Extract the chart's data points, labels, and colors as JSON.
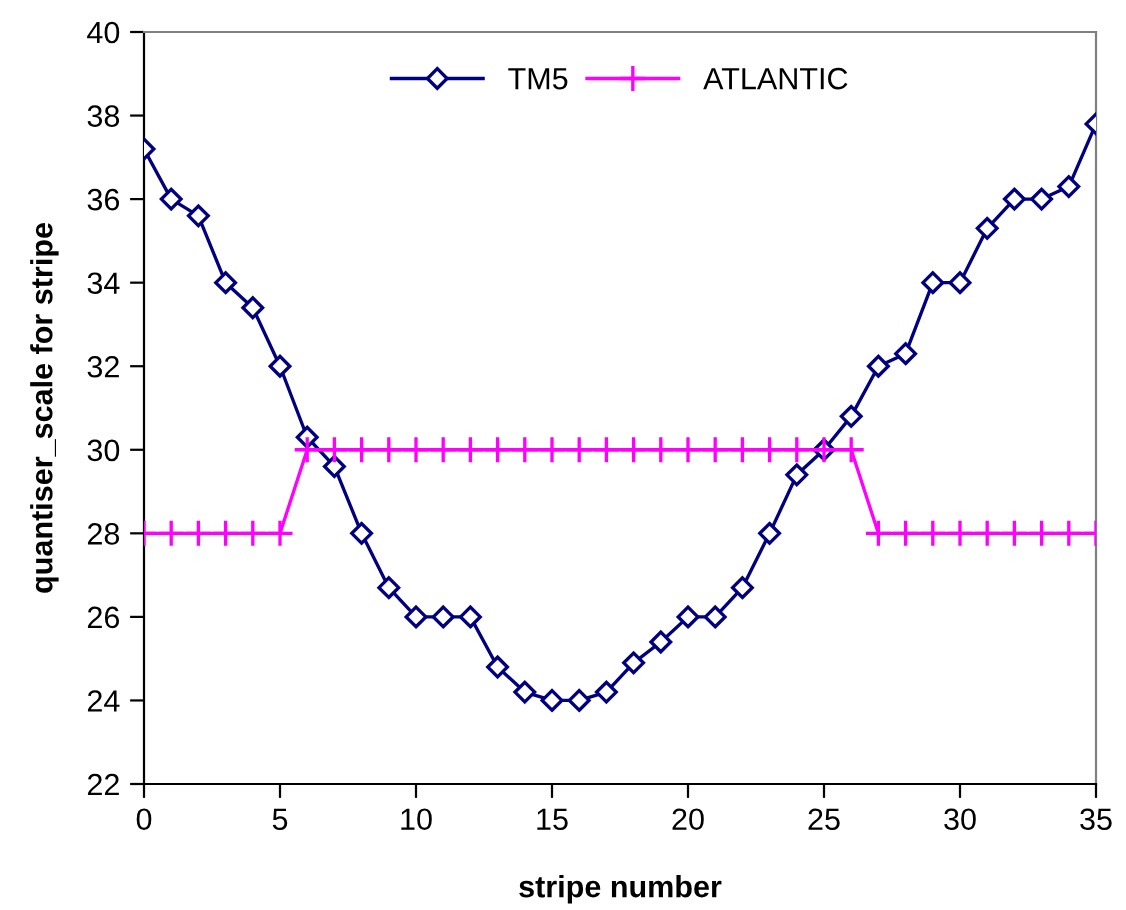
{
  "chart_data": {
    "type": "line",
    "xlabel": "stripe number",
    "ylabel": "quantiser_scale for stripe",
    "x": [
      0,
      1,
      2,
      3,
      4,
      5,
      6,
      7,
      8,
      9,
      10,
      11,
      12,
      13,
      14,
      15,
      16,
      17,
      18,
      19,
      20,
      21,
      22,
      23,
      24,
      25,
      26,
      27,
      28,
      29,
      30,
      31,
      32,
      33,
      34,
      35
    ],
    "series": [
      {
        "name": "TM5",
        "color": "#000080",
        "marker": "diamond",
        "values": [
          37.2,
          36.0,
          35.6,
          34.0,
          33.4,
          32.0,
          30.3,
          29.6,
          28.0,
          26.7,
          26.0,
          26.0,
          26.0,
          24.8,
          24.2,
          24.0,
          24.0,
          24.2,
          24.9,
          25.4,
          26.0,
          26.0,
          26.7,
          28.0,
          29.4,
          30.0,
          30.8,
          32.0,
          32.3,
          34.0,
          34.0,
          35.3,
          36.0,
          36.0,
          36.3,
          37.8
        ]
      },
      {
        "name": "ATLANTIC",
        "color": "#ff00ff",
        "marker": "cross",
        "values": [
          28,
          28,
          28,
          28,
          28,
          28,
          30,
          30,
          30,
          30,
          30,
          30,
          30,
          30,
          30,
          30,
          30,
          30,
          30,
          30,
          30,
          30,
          30,
          30,
          30,
          30,
          30,
          28,
          28,
          28,
          28,
          28,
          28,
          28,
          28,
          28
        ]
      }
    ],
    "xlim": [
      0,
      35
    ],
    "xticks": [
      0,
      5,
      10,
      15,
      20,
      25,
      30,
      35
    ],
    "ylim": [
      22,
      40
    ],
    "yticks": [
      22,
      24,
      26,
      28,
      30,
      32,
      34,
      36,
      38,
      40
    ],
    "grid": false,
    "legend": "top",
    "line_style": "solid"
  }
}
